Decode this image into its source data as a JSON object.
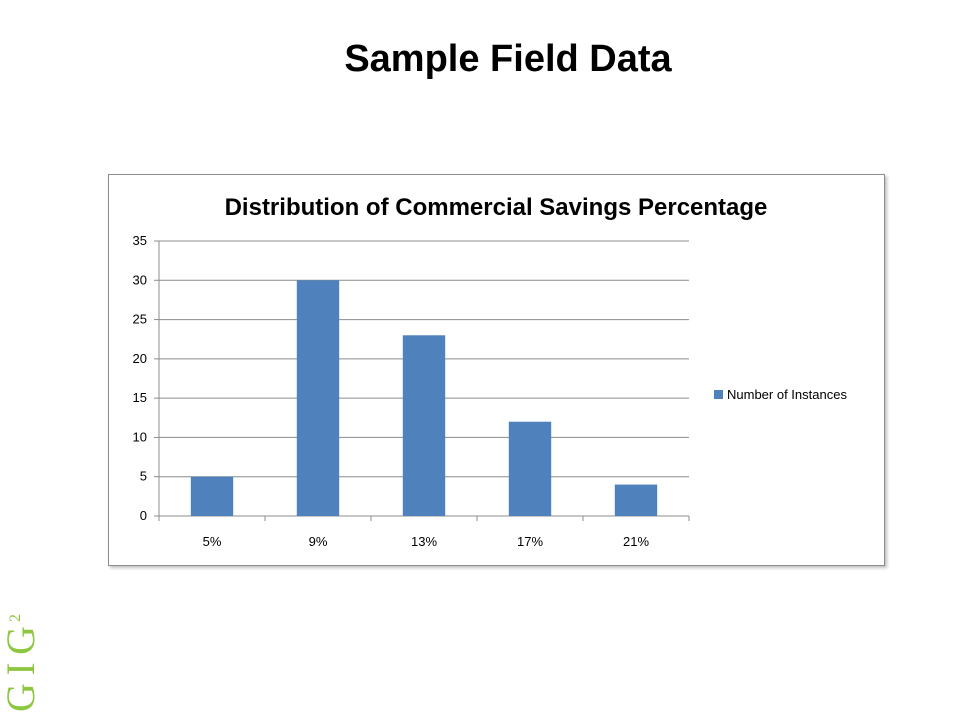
{
  "slide": {
    "title": "Sample Field Data"
  },
  "logo": {
    "text": "GIG",
    "superscript": "2",
    "color": "#8dc63f"
  },
  "chart_data": {
    "type": "bar",
    "title": "Distribution of Commercial Savings Percentage",
    "categories": [
      "5%",
      "9%",
      "13%",
      "17%",
      "21%"
    ],
    "series": [
      {
        "name": "Number of Instances",
        "values": [
          5,
          30,
          23,
          12,
          4
        ],
        "color": "#4f81bd"
      }
    ],
    "ylim": [
      0,
      35
    ],
    "yticks": [
      0,
      5,
      10,
      15,
      20,
      25,
      30,
      35
    ],
    "xlabel": "",
    "ylabel": "",
    "grid": true,
    "legend_position": "right"
  }
}
